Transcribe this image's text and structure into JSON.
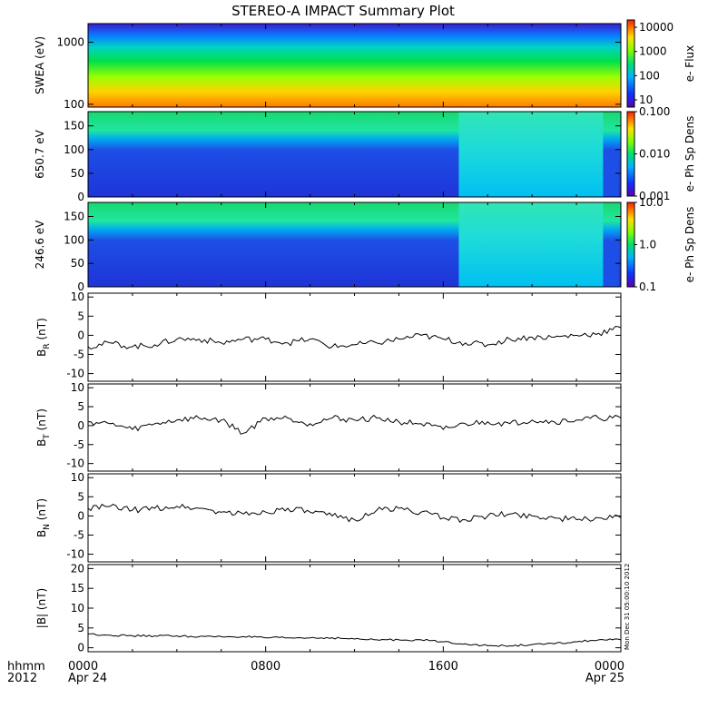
{
  "title": "STEREO-A IMPACT Summary Plot",
  "stamp": "Mon Dec 31 05:00:10 2012",
  "xaxis": {
    "label_line1": "hhmm",
    "label_line2": "2012",
    "ticks": [
      {
        "hours": 0,
        "line1": "0000",
        "line2": "Apr 24"
      },
      {
        "hours": 8,
        "line1": "0800",
        "line2": ""
      },
      {
        "hours": 16,
        "line1": "1600",
        "line2": ""
      },
      {
        "hours": 24,
        "line1": "0000",
        "line2": "Apr 25"
      }
    ],
    "range_hours": [
      0,
      24
    ]
  },
  "colors": {
    "trace": "#000000",
    "frame": "#000000"
  },
  "chart_data": [
    {
      "type": "heatmap",
      "ylabel": "SWEA (eV)",
      "yscale": "log",
      "ylim": [
        90,
        2000
      ],
      "yticks": [
        100,
        1000
      ],
      "yticklabels": [
        "100",
        "1000"
      ],
      "colorbar": {
        "label": "e- Flux",
        "scale": "log",
        "range": [
          5,
          20000
        ],
        "ticks": [
          10,
          100,
          1000,
          10000
        ],
        "ticklabels": [
          "10",
          "100",
          "1000",
          "10000"
        ]
      },
      "description_values": {
        "low_energy_level": "high flux (red/yellow)",
        "high_energy_level": "low flux (blue/purple)"
      }
    },
    {
      "type": "heatmap",
      "ylabel": "650.7 eV",
      "yscale": "linear",
      "ylim": [
        0,
        180
      ],
      "yticks": [
        0,
        50,
        100,
        150
      ],
      "colorbar": {
        "label": "e- Ph Sp Dens",
        "scale": "log",
        "range": [
          0.001,
          0.1
        ],
        "ticks": [
          0.001,
          0.01,
          0.1
        ],
        "ticklabels": [
          "0.001",
          "0.010",
          "0.100"
        ]
      },
      "change_hour": 16.7
    },
    {
      "type": "heatmap",
      "ylabel": "246.6 eV",
      "yscale": "linear",
      "ylim": [
        0,
        180
      ],
      "yticks": [
        0,
        50,
        100,
        150
      ],
      "colorbar": {
        "label": "e- Ph Sp Dens",
        "scale": "log",
        "range": [
          0.1,
          10
        ],
        "ticks": [
          0.1,
          1,
          10
        ],
        "ticklabels": [
          "0.1",
          "1.0",
          "10.0"
        ]
      },
      "change_hour": 16.7
    },
    {
      "type": "line",
      "ylabel_main": "B",
      "ylabel_sub": "R",
      "ylabel_unit": "(nT)",
      "ylim": [
        -12,
        11
      ],
      "yticks": [
        -10,
        -5,
        0,
        5,
        10
      ],
      "x": [
        0,
        1,
        2,
        3,
        4,
        5,
        6,
        7,
        8,
        9,
        10,
        11,
        12,
        13,
        14,
        15,
        16,
        17,
        18,
        19,
        20,
        21,
        22,
        23,
        24
      ],
      "y": [
        -3,
        -2,
        -3,
        -2.5,
        -1,
        -1,
        -2,
        -1,
        -1,
        -2,
        -1,
        -3,
        -2.5,
        -2,
        -1,
        0,
        -1,
        -2,
        -2.5,
        -1,
        -0.5,
        -0.5,
        0,
        0.5,
        2
      ]
    },
    {
      "type": "line",
      "ylabel_main": "B",
      "ylabel_sub": "T",
      "ylabel_unit": "(nT)",
      "ylim": [
        -12,
        11
      ],
      "yticks": [
        -10,
        -5,
        0,
        5,
        10
      ],
      "x": [
        0,
        1,
        2,
        3,
        4,
        5,
        6,
        7,
        8,
        9,
        10,
        11,
        12,
        13,
        14,
        15,
        16,
        17,
        18,
        19,
        20,
        21,
        22,
        23,
        24
      ],
      "y": [
        1,
        0.5,
        -1,
        0.5,
        1.5,
        2,
        1.5,
        -2,
        2,
        2,
        0.5,
        2,
        1.5,
        2,
        1,
        0.5,
        -1,
        0.5,
        1,
        0.5,
        1.5,
        1,
        1.5,
        2,
        2
      ]
    },
    {
      "type": "line",
      "ylabel_main": "B",
      "ylabel_sub": "N",
      "ylabel_unit": "(nT)",
      "ylim": [
        -12,
        11
      ],
      "yticks": [
        -10,
        -5,
        0,
        5,
        10
      ],
      "x": [
        0,
        1,
        2,
        3,
        4,
        5,
        6,
        7,
        8,
        9,
        10,
        11,
        12,
        13,
        14,
        15,
        16,
        17,
        18,
        19,
        20,
        21,
        22,
        23,
        24
      ],
      "y": [
        2,
        2.5,
        1.5,
        2,
        2.5,
        2,
        1,
        0.5,
        1,
        2,
        1,
        0,
        -1,
        1.5,
        2,
        1,
        -0.5,
        -1,
        0,
        0.5,
        0,
        -0.5,
        -1,
        -0.5,
        -0.5
      ]
    },
    {
      "type": "line",
      "ylabel_main": "|B|",
      "ylabel_sub": "",
      "ylabel_unit": "(nT)",
      "ylim": [
        -1,
        21
      ],
      "yticks": [
        0,
        5,
        10,
        15,
        20
      ],
      "x": [
        0,
        1,
        2,
        3,
        4,
        5,
        6,
        7,
        8,
        9,
        10,
        11,
        12,
        13,
        14,
        15,
        16,
        17,
        18,
        19,
        20,
        21,
        22,
        23,
        24
      ],
      "y": [
        3.5,
        3.2,
        3,
        3,
        3,
        2.8,
        2.8,
        2.8,
        2.5,
        2.5,
        2.5,
        2.5,
        2.2,
        2,
        2,
        2,
        1.5,
        1,
        0.5,
        0.5,
        0.8,
        1,
        1.5,
        2,
        2
      ]
    }
  ]
}
